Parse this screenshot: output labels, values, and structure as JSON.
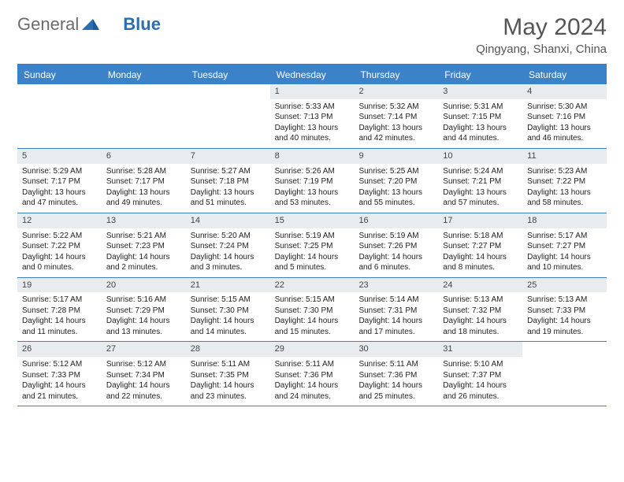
{
  "logo": {
    "text1": "General",
    "text2": "Blue"
  },
  "title": "May 2024",
  "location": "Qingyang, Shanxi, China",
  "colors": {
    "header_bar": "#3b82c9",
    "header_text": "#ffffff",
    "daynum_bg": "#e9ecef",
    "rule": "#3b7fc4",
    "logo_blue": "#2a6fb5",
    "logo_gray": "#6b6b6b",
    "title_gray": "#555555"
  },
  "day_headers": [
    "Sunday",
    "Monday",
    "Tuesday",
    "Wednesday",
    "Thursday",
    "Friday",
    "Saturday"
  ],
  "weeks": [
    [
      null,
      null,
      null,
      {
        "n": "1",
        "sr": "Sunrise: 5:33 AM",
        "ss": "Sunset: 7:13 PM",
        "dl1": "Daylight: 13 hours",
        "dl2": "and 40 minutes."
      },
      {
        "n": "2",
        "sr": "Sunrise: 5:32 AM",
        "ss": "Sunset: 7:14 PM",
        "dl1": "Daylight: 13 hours",
        "dl2": "and 42 minutes."
      },
      {
        "n": "3",
        "sr": "Sunrise: 5:31 AM",
        "ss": "Sunset: 7:15 PM",
        "dl1": "Daylight: 13 hours",
        "dl2": "and 44 minutes."
      },
      {
        "n": "4",
        "sr": "Sunrise: 5:30 AM",
        "ss": "Sunset: 7:16 PM",
        "dl1": "Daylight: 13 hours",
        "dl2": "and 46 minutes."
      }
    ],
    [
      {
        "n": "5",
        "sr": "Sunrise: 5:29 AM",
        "ss": "Sunset: 7:17 PM",
        "dl1": "Daylight: 13 hours",
        "dl2": "and 47 minutes."
      },
      {
        "n": "6",
        "sr": "Sunrise: 5:28 AM",
        "ss": "Sunset: 7:17 PM",
        "dl1": "Daylight: 13 hours",
        "dl2": "and 49 minutes."
      },
      {
        "n": "7",
        "sr": "Sunrise: 5:27 AM",
        "ss": "Sunset: 7:18 PM",
        "dl1": "Daylight: 13 hours",
        "dl2": "and 51 minutes."
      },
      {
        "n": "8",
        "sr": "Sunrise: 5:26 AM",
        "ss": "Sunset: 7:19 PM",
        "dl1": "Daylight: 13 hours",
        "dl2": "and 53 minutes."
      },
      {
        "n": "9",
        "sr": "Sunrise: 5:25 AM",
        "ss": "Sunset: 7:20 PM",
        "dl1": "Daylight: 13 hours",
        "dl2": "and 55 minutes."
      },
      {
        "n": "10",
        "sr": "Sunrise: 5:24 AM",
        "ss": "Sunset: 7:21 PM",
        "dl1": "Daylight: 13 hours",
        "dl2": "and 57 minutes."
      },
      {
        "n": "11",
        "sr": "Sunrise: 5:23 AM",
        "ss": "Sunset: 7:22 PM",
        "dl1": "Daylight: 13 hours",
        "dl2": "and 58 minutes."
      }
    ],
    [
      {
        "n": "12",
        "sr": "Sunrise: 5:22 AM",
        "ss": "Sunset: 7:22 PM",
        "dl1": "Daylight: 14 hours",
        "dl2": "and 0 minutes."
      },
      {
        "n": "13",
        "sr": "Sunrise: 5:21 AM",
        "ss": "Sunset: 7:23 PM",
        "dl1": "Daylight: 14 hours",
        "dl2": "and 2 minutes."
      },
      {
        "n": "14",
        "sr": "Sunrise: 5:20 AM",
        "ss": "Sunset: 7:24 PM",
        "dl1": "Daylight: 14 hours",
        "dl2": "and 3 minutes."
      },
      {
        "n": "15",
        "sr": "Sunrise: 5:19 AM",
        "ss": "Sunset: 7:25 PM",
        "dl1": "Daylight: 14 hours",
        "dl2": "and 5 minutes."
      },
      {
        "n": "16",
        "sr": "Sunrise: 5:19 AM",
        "ss": "Sunset: 7:26 PM",
        "dl1": "Daylight: 14 hours",
        "dl2": "and 6 minutes."
      },
      {
        "n": "17",
        "sr": "Sunrise: 5:18 AM",
        "ss": "Sunset: 7:27 PM",
        "dl1": "Daylight: 14 hours",
        "dl2": "and 8 minutes."
      },
      {
        "n": "18",
        "sr": "Sunrise: 5:17 AM",
        "ss": "Sunset: 7:27 PM",
        "dl1": "Daylight: 14 hours",
        "dl2": "and 10 minutes."
      }
    ],
    [
      {
        "n": "19",
        "sr": "Sunrise: 5:17 AM",
        "ss": "Sunset: 7:28 PM",
        "dl1": "Daylight: 14 hours",
        "dl2": "and 11 minutes."
      },
      {
        "n": "20",
        "sr": "Sunrise: 5:16 AM",
        "ss": "Sunset: 7:29 PM",
        "dl1": "Daylight: 14 hours",
        "dl2": "and 13 minutes."
      },
      {
        "n": "21",
        "sr": "Sunrise: 5:15 AM",
        "ss": "Sunset: 7:30 PM",
        "dl1": "Daylight: 14 hours",
        "dl2": "and 14 minutes."
      },
      {
        "n": "22",
        "sr": "Sunrise: 5:15 AM",
        "ss": "Sunset: 7:30 PM",
        "dl1": "Daylight: 14 hours",
        "dl2": "and 15 minutes."
      },
      {
        "n": "23",
        "sr": "Sunrise: 5:14 AM",
        "ss": "Sunset: 7:31 PM",
        "dl1": "Daylight: 14 hours",
        "dl2": "and 17 minutes."
      },
      {
        "n": "24",
        "sr": "Sunrise: 5:13 AM",
        "ss": "Sunset: 7:32 PM",
        "dl1": "Daylight: 14 hours",
        "dl2": "and 18 minutes."
      },
      {
        "n": "25",
        "sr": "Sunrise: 5:13 AM",
        "ss": "Sunset: 7:33 PM",
        "dl1": "Daylight: 14 hours",
        "dl2": "and 19 minutes."
      }
    ],
    [
      {
        "n": "26",
        "sr": "Sunrise: 5:12 AM",
        "ss": "Sunset: 7:33 PM",
        "dl1": "Daylight: 14 hours",
        "dl2": "and 21 minutes."
      },
      {
        "n": "27",
        "sr": "Sunrise: 5:12 AM",
        "ss": "Sunset: 7:34 PM",
        "dl1": "Daylight: 14 hours",
        "dl2": "and 22 minutes."
      },
      {
        "n": "28",
        "sr": "Sunrise: 5:11 AM",
        "ss": "Sunset: 7:35 PM",
        "dl1": "Daylight: 14 hours",
        "dl2": "and 23 minutes."
      },
      {
        "n": "29",
        "sr": "Sunrise: 5:11 AM",
        "ss": "Sunset: 7:36 PM",
        "dl1": "Daylight: 14 hours",
        "dl2": "and 24 minutes."
      },
      {
        "n": "30",
        "sr": "Sunrise: 5:11 AM",
        "ss": "Sunset: 7:36 PM",
        "dl1": "Daylight: 14 hours",
        "dl2": "and 25 minutes."
      },
      {
        "n": "31",
        "sr": "Sunrise: 5:10 AM",
        "ss": "Sunset: 7:37 PM",
        "dl1": "Daylight: 14 hours",
        "dl2": "and 26 minutes."
      },
      null
    ]
  ]
}
